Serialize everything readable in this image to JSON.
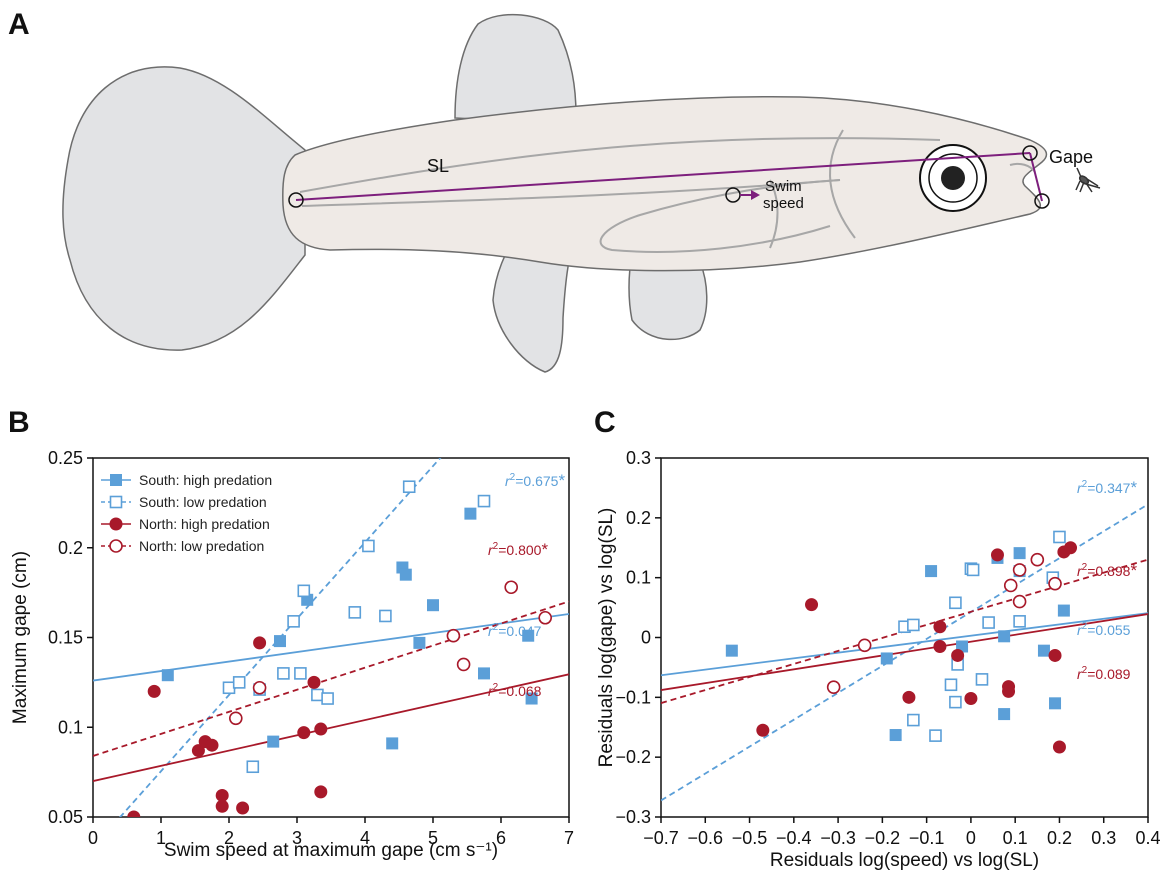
{
  "panels": {
    "a": "A",
    "b": "B",
    "c": "C"
  },
  "fish": {
    "sl_label": "SL",
    "gape_label": "Gape",
    "swim_line1": "Swim",
    "swim_line2": "speed",
    "colors": {
      "body": "#efeae6",
      "fin": "#e2e3e5",
      "outline": "#6d6d6d",
      "measure": "#7d1f7d"
    }
  },
  "colors": {
    "south": "#5b9fd8",
    "north": "#a8192a"
  },
  "chart_data": [
    {
      "type": "scatter",
      "panel": "B",
      "xlabel": "Swim speed at maximum gape (cm s⁻¹)",
      "ylabel": "Maximum gape (cm)",
      "xlim": [
        0,
        7
      ],
      "ylim": [
        0.05,
        0.25
      ],
      "xticks": [
        0,
        1,
        2,
        3,
        4,
        5,
        6,
        7
      ],
      "yticks": [
        0.05,
        0.1,
        0.15,
        0.2,
        0.25
      ],
      "xticklabels": [
        "0",
        "1",
        "2",
        "3",
        "4",
        "5",
        "6",
        "7"
      ],
      "yticklabels": [
        "0.05",
        "0.1",
        "0.15",
        "0.2",
        "0.25"
      ],
      "legend": "top-left",
      "series": [
        {
          "name": "South: high predation",
          "key": "south-high",
          "color": "#5b9fd8",
          "marker": "square-filled",
          "points": [
            [
              1.1,
              0.129
            ],
            [
              2.65,
              0.092
            ],
            [
              2.75,
              0.148
            ],
            [
              3.15,
              0.171
            ],
            [
              4.4,
              0.091
            ],
            [
              4.55,
              0.189
            ],
            [
              4.6,
              0.185
            ],
            [
              4.8,
              0.147
            ],
            [
              5.0,
              0.168
            ],
            [
              5.55,
              0.219
            ],
            [
              5.75,
              0.13
            ],
            [
              6.4,
              0.151
            ],
            [
              6.45,
              0.116
            ]
          ],
          "fit": {
            "intercept": 0.126,
            "slope": 0.0053,
            "style": "solid"
          },
          "r2": "=0.047",
          "significant": false
        },
        {
          "name": "South: low predation",
          "key": "south-low",
          "color": "#5b9fd8",
          "marker": "square-open",
          "points": [
            [
              2.0,
              0.122
            ],
            [
              2.15,
              0.125
            ],
            [
              2.35,
              0.078
            ],
            [
              2.45,
              0.121
            ],
            [
              2.8,
              0.13
            ],
            [
              2.95,
              0.159
            ],
            [
              3.05,
              0.13
            ],
            [
              3.1,
              0.176
            ],
            [
              3.3,
              0.118
            ],
            [
              3.45,
              0.116
            ],
            [
              3.85,
              0.164
            ],
            [
              4.05,
              0.201
            ],
            [
              4.3,
              0.162
            ],
            [
              4.65,
              0.234
            ],
            [
              5.75,
              0.226
            ]
          ],
          "fit": {
            "intercept": 0.033,
            "slope": 0.0425,
            "style": "dashed"
          },
          "r2": "=0.675",
          "significant": true
        },
        {
          "name": "North: high predation",
          "key": "north-high",
          "color": "#a8192a",
          "marker": "circle-filled",
          "points": [
            [
              0.6,
              0.05
            ],
            [
              0.9,
              0.12
            ],
            [
              1.55,
              0.087
            ],
            [
              1.65,
              0.092
            ],
            [
              1.75,
              0.09
            ],
            [
              1.9,
              0.062
            ],
            [
              1.9,
              0.056
            ],
            [
              2.2,
              0.055
            ],
            [
              2.45,
              0.147
            ],
            [
              3.1,
              0.097
            ],
            [
              3.25,
              0.125
            ],
            [
              3.35,
              0.099
            ],
            [
              3.35,
              0.064
            ]
          ],
          "fit": {
            "intercept": 0.07,
            "slope": 0.0085,
            "style": "solid"
          },
          "r2": "=0.068",
          "significant": false
        },
        {
          "name": "North: low predation",
          "key": "north-low",
          "color": "#a8192a",
          "marker": "circle-open",
          "points": [
            [
              2.1,
              0.105
            ],
            [
              2.45,
              0.122
            ],
            [
              5.3,
              0.151
            ],
            [
              5.45,
              0.135
            ],
            [
              6.15,
              0.178
            ],
            [
              6.65,
              0.161
            ]
          ],
          "fit": {
            "intercept": 0.084,
            "slope": 0.0123,
            "style": "dashed"
          },
          "r2": "=0.800",
          "significant": true
        }
      ]
    },
    {
      "type": "scatter",
      "panel": "C",
      "xlabel": "Residuals log(speed) vs log(SL)",
      "ylabel": "Residuals log(gape) vs log(SL)",
      "xlim": [
        -0.7,
        0.4
      ],
      "ylim": [
        -0.3,
        0.3
      ],
      "xticks": [
        -0.7,
        -0.6,
        -0.5,
        -0.4,
        -0.3,
        -0.2,
        -0.1,
        0,
        0.1,
        0.2,
        0.3,
        0.4
      ],
      "yticks": [
        -0.3,
        -0.2,
        -0.1,
        0,
        0.1,
        0.2,
        0.3
      ],
      "xticklabels": [
        "−0.7",
        "−0.6",
        "−0.5",
        "−0.4",
        "−0.3",
        "−0.2",
        "−0.1",
        "0",
        "0.1",
        "0.2",
        "0.3",
        "0.4"
      ],
      "yticklabels": [
        "−0.3",
        "−0.2",
        "−0.1",
        "0",
        "0.1",
        "0.2",
        "0.3"
      ],
      "series": [
        {
          "key": "south-high",
          "color": "#5b9fd8",
          "marker": "square-filled",
          "points": [
            [
              -0.54,
              -0.022
            ],
            [
              -0.19,
              -0.035
            ],
            [
              -0.17,
              -0.163
            ],
            [
              -0.09,
              0.111
            ],
            [
              -0.02,
              -0.015
            ],
            [
              0.06,
              0.133
            ],
            [
              0.075,
              0.002
            ],
            [
              0.075,
              -0.128
            ],
            [
              0.11,
              0.141
            ],
            [
              0.11,
              0.111
            ],
            [
              0.165,
              -0.022
            ],
            [
              0.19,
              -0.11
            ],
            [
              0.21,
              0.045
            ]
          ],
          "fit": {
            "intercept": 0.003,
            "slope": 0.0945,
            "style": "solid"
          },
          "r2": "=0.055",
          "significant": false
        },
        {
          "key": "south-high-fill",
          "color": "#5b9fd8",
          "marker": "none",
          "points": [],
          "fit": null
        },
        {
          "key": "south-low",
          "color": "#5b9fd8",
          "marker": "square-open",
          "points": [
            [
              -0.15,
              0.018
            ],
            [
              -0.13,
              0.021
            ],
            [
              -0.13,
              -0.138
            ],
            [
              -0.08,
              -0.164
            ],
            [
              -0.045,
              -0.079
            ],
            [
              -0.035,
              0.058
            ],
            [
              -0.035,
              -0.108
            ],
            [
              -0.03,
              -0.045
            ],
            [
              0.0,
              0.115
            ],
            [
              0.005,
              0.113
            ],
            [
              0.025,
              -0.07
            ],
            [
              0.04,
              0.025
            ],
            [
              0.11,
              0.027
            ],
            [
              0.2,
              0.168
            ],
            [
              0.185,
              0.1
            ]
          ],
          "fit": {
            "intercept": 0.0426,
            "slope": 0.45,
            "style": "dashed"
          },
          "r2": "=0.347",
          "significant": true
        },
        {
          "key": "north-high",
          "color": "#a8192a",
          "marker": "circle-filled",
          "points": [
            [
              -0.47,
              -0.155
            ],
            [
              -0.36,
              0.055
            ],
            [
              -0.14,
              -0.1
            ],
            [
              -0.07,
              0.018
            ],
            [
              -0.07,
              -0.015
            ],
            [
              -0.03,
              -0.03
            ],
            [
              0.0,
              -0.102
            ],
            [
              0.06,
              0.138
            ],
            [
              0.085,
              -0.082
            ],
            [
              0.085,
              -0.09
            ],
            [
              0.19,
              -0.03
            ],
            [
              0.2,
              -0.183
            ],
            [
              0.21,
              0.143
            ],
            [
              0.225,
              0.15
            ]
          ],
          "fit": {
            "intercept": -0.007,
            "slope": 0.1155,
            "style": "solid"
          },
          "r2": "=0.089",
          "significant": false
        },
        {
          "key": "north-low",
          "color": "#a8192a",
          "marker": "circle-open",
          "points": [
            [
              -0.31,
              -0.083
            ],
            [
              -0.24,
              -0.013
            ],
            [
              0.09,
              0.087
            ],
            [
              0.11,
              0.06
            ],
            [
              0.11,
              0.113
            ],
            [
              0.15,
              0.13
            ],
            [
              0.19,
              0.09
            ]
          ],
          "fit": {
            "intercept": 0.043,
            "slope": 0.218,
            "style": "dashed"
          },
          "r2": "=0.898",
          "significant": true
        }
      ]
    }
  ]
}
